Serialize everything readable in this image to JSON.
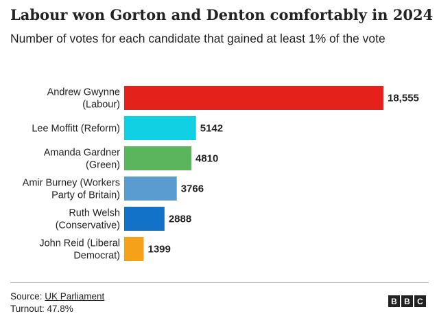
{
  "header": {
    "title": "Labour won Gorton and Denton comfortably in 2024",
    "subtitle": "Number of votes for each candidate that gained at least 1% of the vote"
  },
  "chart_data": {
    "type": "bar",
    "orientation": "horizontal",
    "categories": [
      [
        "Andrew Gwynne",
        "(Labour)"
      ],
      [
        "Lee Moffitt (Reform)"
      ],
      [
        "Amanda Gardner",
        "(Green)"
      ],
      [
        "Amir Burney (Workers",
        "Party of Britain)"
      ],
      [
        "Ruth Welsh",
        "(Conservative)"
      ],
      [
        "John Reid (Liberal",
        "Democrat)"
      ]
    ],
    "values": [
      18555,
      5142,
      4810,
      3766,
      2888,
      1399
    ],
    "value_labels": [
      "18,555",
      "5142",
      "4810",
      "3766",
      "2888",
      "1399"
    ],
    "colors": [
      "#e4211b",
      "#12d0e4",
      "#5bb55d",
      "#5a9ccf",
      "#1172c8",
      "#f6a11a"
    ],
    "grid": false,
    "legend": "none"
  },
  "footer": {
    "source_prefix": "Source: ",
    "source_link": "UK Parliament",
    "turnout": "Turnout: 47.8%",
    "logo": [
      "B",
      "B",
      "C"
    ]
  }
}
